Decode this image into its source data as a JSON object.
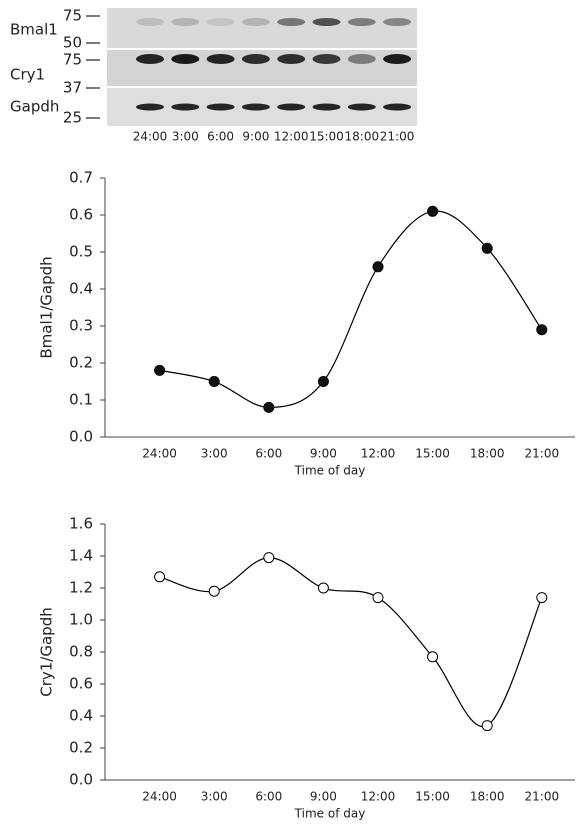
{
  "blot": {
    "rows": [
      "Bmal1",
      "Cry1",
      "Gapdh"
    ],
    "markers": [
      "75",
      "50",
      "75",
      "37",
      "25"
    ],
    "lanes": [
      "24:00",
      "3:00",
      "6:00",
      "9:00",
      "12:00",
      "15:00",
      "18:00",
      "21:00"
    ]
  },
  "chart_data": [
    {
      "type": "line",
      "xlabel": "Time of day",
      "ylabel": "Bmal1/Gapdh",
      "categories": [
        "24:00",
        "3:00",
        "6:00",
        "9:00",
        "12:00",
        "15:00",
        "18:00",
        "21:00"
      ],
      "series": [
        {
          "color": "#000000",
          "marker_fill": "#111111",
          "values": [
            0.18,
            0.15,
            0.08,
            0.15,
            0.46,
            0.61,
            0.51,
            0.29
          ]
        }
      ],
      "ylim": [
        0,
        0.7
      ],
      "yticks": [
        {
          "value": 0,
          "label": "0.0"
        },
        0.1,
        0.2,
        0.3,
        0.4,
        0.5,
        0.6,
        0.7
      ],
      "smooth": true
    },
    {
      "type": "line",
      "xlabel": "Time of day",
      "ylabel": "Cry1/Gapdh",
      "categories": [
        "24:00",
        "3:00",
        "6:00",
        "9:00",
        "12:00",
        "15:00",
        "18:00",
        "21:00"
      ],
      "series": [
        {
          "color": "#000000",
          "marker_fill": "#ffffff",
          "values": [
            1.27,
            1.18,
            1.39,
            1.2,
            1.14,
            0.77,
            0.34,
            1.14
          ]
        }
      ],
      "ylim": [
        0,
        1.6
      ],
      "yticks": [
        {
          "value": 0,
          "label": "0.0"
        },
        0.2,
        0.4,
        0.6,
        0.8,
        {
          "value": 1,
          "label": "1.0"
        },
        1.2,
        1.4,
        1.6
      ],
      "smooth": true
    }
  ]
}
